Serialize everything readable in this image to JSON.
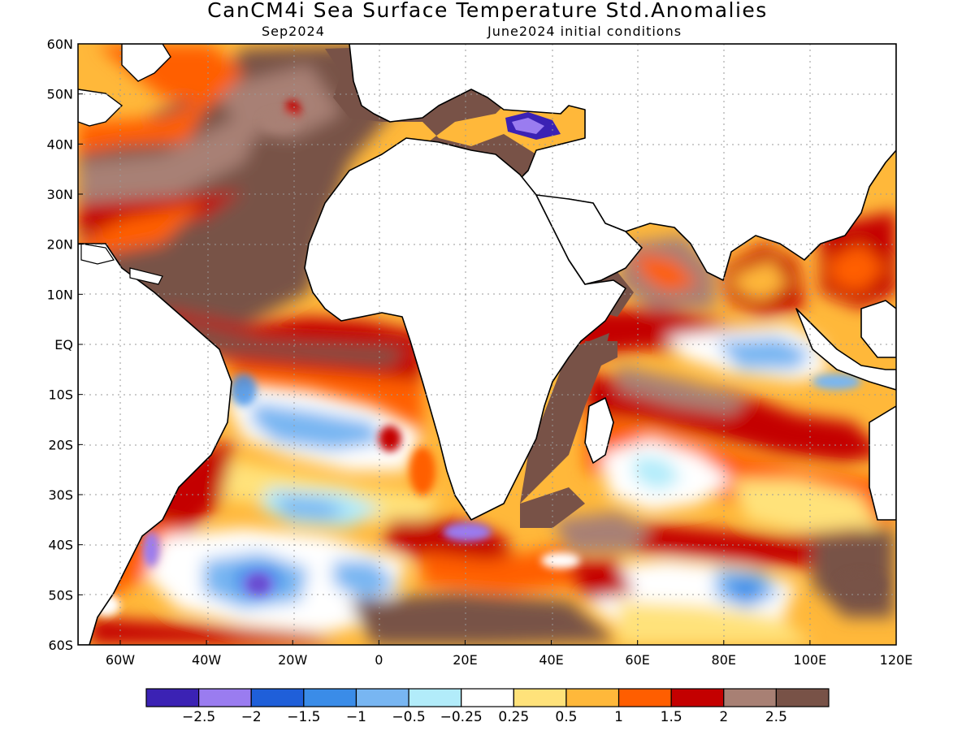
{
  "header": {
    "title": "CanCM4i Sea Surface Temperature Std.Anomalies",
    "valid_month": "Sep2024",
    "init": "June2024 initial conditions"
  },
  "axes": {
    "lat_labels": [
      "60N",
      "50N",
      "40N",
      "30N",
      "20N",
      "10N",
      "EQ",
      "10S",
      "20S",
      "30S",
      "40S",
      "50S",
      "60S"
    ],
    "lon_labels": [
      "60W",
      "40W",
      "20W",
      "0",
      "20E",
      "40E",
      "60E",
      "80E",
      "100E",
      "120E"
    ]
  },
  "colorbar": {
    "colors": [
      "#3b22b4",
      "#9a7cf0",
      "#1f5fd9",
      "#3a8ce8",
      "#78b6f2",
      "#b2ecfa",
      "#ffffff",
      "#ffe27a",
      "#ffb83a",
      "#ff5e00",
      "#c40000",
      "#a88074",
      "#785247"
    ],
    "labels": [
      "−2.5",
      "−2",
      "−1.5",
      "−1",
      "−0.5",
      "−0.25",
      "0.25",
      "0.5",
      "1",
      "1.5",
      "2",
      "2.5"
    ]
  }
}
